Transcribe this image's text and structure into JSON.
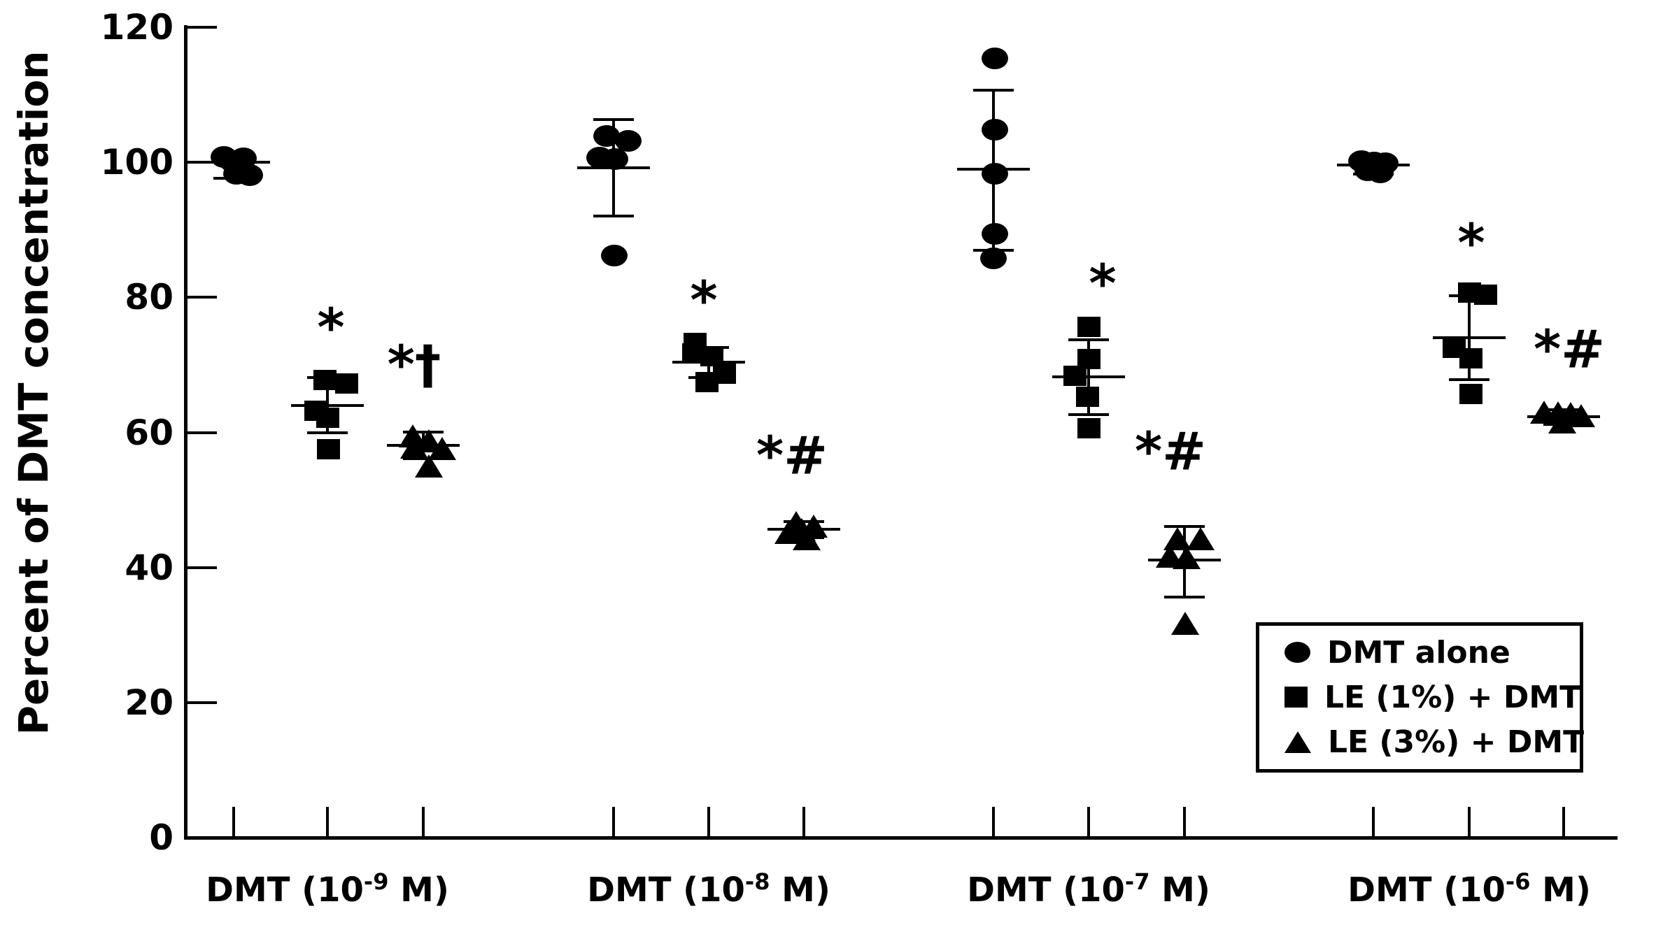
{
  "chart_data": {
    "type": "scatter",
    "title": "",
    "ylabel": "Percent of DMT concentration",
    "xlabel": "",
    "ylim": [
      0,
      120
    ],
    "y_ticks": [
      0,
      20,
      40,
      60,
      80,
      100,
      120
    ],
    "grid": false,
    "error_bars": "mean with sd caps",
    "colors": {
      "foreground": "#000000",
      "background": "#ffffff"
    },
    "legend": {
      "position": "lower-right-inside",
      "items": [
        {
          "marker": "circle",
          "label": "DMT alone"
        },
        {
          "marker": "square",
          "label": "LE (1%) + DMT"
        },
        {
          "marker": "triangle",
          "label": "LE (3%) + DMT"
        }
      ]
    },
    "groups": [
      {
        "label": "DMT (10⁻⁹ M)",
        "label_parts": {
          "base": "DMT (10",
          "exp": "-9",
          "unit": " M)"
        },
        "x_ticks": [
          334,
          468,
          605
        ],
        "label_x": 468,
        "series": [
          {
            "name": "DMT alone",
            "marker": "circle",
            "x": 334,
            "values": [
              100.9,
              100.6,
              100.2,
              98.4,
              98.2
            ],
            "dx": [
              -14,
              14,
              -2,
              4,
              23
            ],
            "mean": 100.0,
            "err_top": 101.4,
            "err_bottom": 97.6,
            "annotation": ""
          },
          {
            "name": "LE (1%) + DMT",
            "marker": "square",
            "x": 468,
            "values": [
              67.8,
              67.3,
              63.3,
              62.2,
              57.6
            ],
            "dx": [
              -4,
              27,
              -17,
              0,
              1
            ],
            "mean": 64.0,
            "err_top": 68.1,
            "err_bottom": 59.9,
            "annotation": "*",
            "ann_dx": 5,
            "ann_y": 75.5
          },
          {
            "name": "LE (3%) + DMT",
            "marker": "triangle",
            "x": 605,
            "values": [
              59.4,
              58.7,
              57.8,
              57.6,
              55.0
            ],
            "dx": [
              -15,
              8,
              -13,
              27,
              8
            ],
            "mean": 58.1,
            "err_top": 60.1,
            "err_bottom": 56.1,
            "annotation": "*†",
            "ann_dx": -13,
            "ann_y": 70.0
          }
        ]
      },
      {
        "label": "DMT (10⁻⁸ M)",
        "label_parts": {
          "base": "DMT (10",
          "exp": "-8",
          "unit": " M)"
        },
        "x_ticks": [
          877,
          1013,
          1149
        ],
        "label_x": 1013,
        "series": [
          {
            "name": "DMT alone",
            "marker": "circle",
            "x": 877,
            "values": [
              104.0,
              103.2,
              100.7,
              100.5,
              86.2
            ],
            "dx": [
              -10,
              21,
              -20,
              2,
              1
            ],
            "mean": 99.2,
            "err_top": 106.3,
            "err_bottom": 92.0,
            "annotation": ""
          },
          {
            "name": "LE (1%) + DMT",
            "marker": "square",
            "x": 1013,
            "values": [
              73.3,
              71.8,
              71.3,
              68.8,
              67.5
            ],
            "dx": [
              -20,
              -22,
              4,
              22,
              -3
            ],
            "mean": 70.4,
            "err_top": 72.6,
            "err_bottom": 68.1,
            "annotation": "*",
            "ann_dx": -7,
            "ann_y": 79.5
          },
          {
            "name": "LE (3%) + DMT",
            "marker": "triangle",
            "x": 1149,
            "values": [
              46.6,
              46.1,
              45.6,
              45.1,
              44.2
            ],
            "dx": [
              -11,
              14,
              -3,
              -22,
              4
            ],
            "mean": 45.7,
            "err_top": 46.8,
            "err_bottom": 44.4,
            "annotation": "*#",
            "ann_dx": -17,
            "ann_y": 56.5
          }
        ]
      },
      {
        "label": "DMT (10⁻⁷ M)",
        "label_parts": {
          "base": "DMT (10",
          "exp": "-7",
          "unit": " M)"
        },
        "x_ticks": [
          1420,
          1556,
          1693
        ],
        "label_x": 1556,
        "series": [
          {
            "name": "DMT alone",
            "marker": "circle",
            "x": 1420,
            "values": [
              115.4,
              104.9,
              98.4,
              89.5,
              85.8
            ],
            "dx": [
              2,
              2,
              2,
              2,
              0
            ],
            "mean": 99.0,
            "err_top": 110.7,
            "err_bottom": 87.0,
            "annotation": ""
          },
          {
            "name": "LE (1%) + DMT",
            "marker": "square",
            "x": 1556,
            "values": [
              75.7,
              70.9,
              68.4,
              65.3,
              60.7
            ],
            "dx": [
              0,
              0,
              -20,
              -2,
              0
            ],
            "mean": 68.2,
            "err_top": 73.7,
            "err_bottom": 62.6,
            "annotation": "*",
            "ann_dx": 20,
            "ann_y": 82.0
          },
          {
            "name": "LE (3%) + DMT",
            "marker": "triangle",
            "x": 1693,
            "values": [
              44.2,
              44.2,
              41.6,
              41.4,
              31.7
            ],
            "dx": [
              -10,
              23,
              -21,
              3,
              1
            ],
            "mean": 41.1,
            "err_top": 46.1,
            "err_bottom": 35.6,
            "annotation": "*#",
            "ann_dx": -20,
            "ann_y": 57.2
          }
        ]
      },
      {
        "label": "DMT (10⁻⁶ M)",
        "label_parts": {
          "base": "DMT (10",
          "exp": "-6",
          "unit": " M)"
        },
        "x_ticks": [
          1963,
          2100,
          2235
        ],
        "label_x": 2100,
        "series": [
          {
            "name": "DMT alone",
            "marker": "circle",
            "x": 1963,
            "values": [
              100.2,
              100.0,
              99.9,
              98.9,
              98.6
            ],
            "dx": [
              -17,
              1,
              17,
              -8,
              10
            ],
            "mean": 99.6,
            "err_top": 100.9,
            "err_bottom": 98.3,
            "annotation": ""
          },
          {
            "name": "LE (1%) + DMT",
            "marker": "square",
            "x": 2100,
            "values": [
              80.8,
              80.5,
              72.6,
              71.0,
              65.8
            ],
            "dx": [
              0,
              23,
              -22,
              2,
              2
            ],
            "mean": 74.0,
            "err_top": 80.2,
            "err_bottom": 67.8,
            "annotation": "*",
            "ann_dx": 3,
            "ann_y": 88.0
          },
          {
            "name": "LE (3%) + DMT",
            "marker": "triangle",
            "x": 2235,
            "values": [
              63.0,
              62.9,
              62.7,
              62.4,
              61.5
            ],
            "dx": [
              -28,
              -8,
              10,
              25,
              -2
            ],
            "mean": 62.3,
            "err_top": 63.4,
            "err_bottom": 61.2,
            "annotation": "*#",
            "ann_dx": 8,
            "ann_y": 72.3
          }
        ]
      }
    ]
  }
}
